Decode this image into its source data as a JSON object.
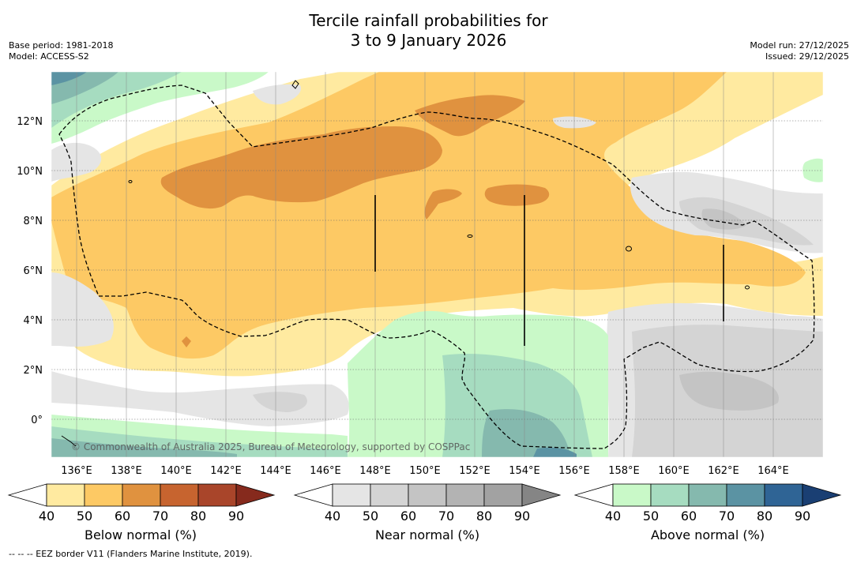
{
  "title": {
    "line1": "Tercile rainfall probabilities for",
    "line2": "3 to 9 January 2026"
  },
  "meta": {
    "base_period": "Base period: 1981-2018",
    "model": "Model: ACCESS-S2",
    "model_run": "Model run: 27/12/2025",
    "issued": "Issued: 29/12/2025"
  },
  "map": {
    "lon_labels": [
      "136°E",
      "138°E",
      "140°E",
      "142°E",
      "144°E",
      "146°E",
      "148°E",
      "150°E",
      "152°E",
      "154°E",
      "156°E",
      "158°E",
      "160°E",
      "162°E",
      "164°E"
    ],
    "lat_labels": [
      "12°N",
      "10°N",
      "8°N",
      "6°N",
      "4°N",
      "2°N",
      "0°"
    ],
    "copyright": "© Commonwealth of Australia 2025, Bureau of Meteorology, supported by COSPPac"
  },
  "colorbars": [
    {
      "name": "below",
      "label": "Below normal (%)",
      "ticks": [
        "40",
        "50",
        "60",
        "70",
        "80",
        "90"
      ],
      "colors": [
        "#ffffff",
        "#ffeaa0",
        "#fdc964",
        "#e0923f",
        "#c7642f",
        "#a9452a",
        "#862a1d"
      ]
    },
    {
      "name": "near",
      "label": "Near normal (%)",
      "ticks": [
        "40",
        "50",
        "60",
        "70",
        "80",
        "90"
      ],
      "colors": [
        "#ffffff",
        "#e5e5e5",
        "#d4d4d4",
        "#c4c4c4",
        "#b3b3b3",
        "#a2a2a2",
        "#858585"
      ]
    },
    {
      "name": "above",
      "label": "Above normal (%)",
      "ticks": [
        "40",
        "50",
        "60",
        "70",
        "80",
        "90"
      ],
      "colors": [
        "#ffffff",
        "#c9f9c8",
        "#a6dcc0",
        "#85b9ae",
        "#5b93a3",
        "#2f6495",
        "#1a3f73"
      ]
    }
  ],
  "footnote": "--  --  -- EEZ border V11 (Flanders Marine Institute, 2019)."
}
